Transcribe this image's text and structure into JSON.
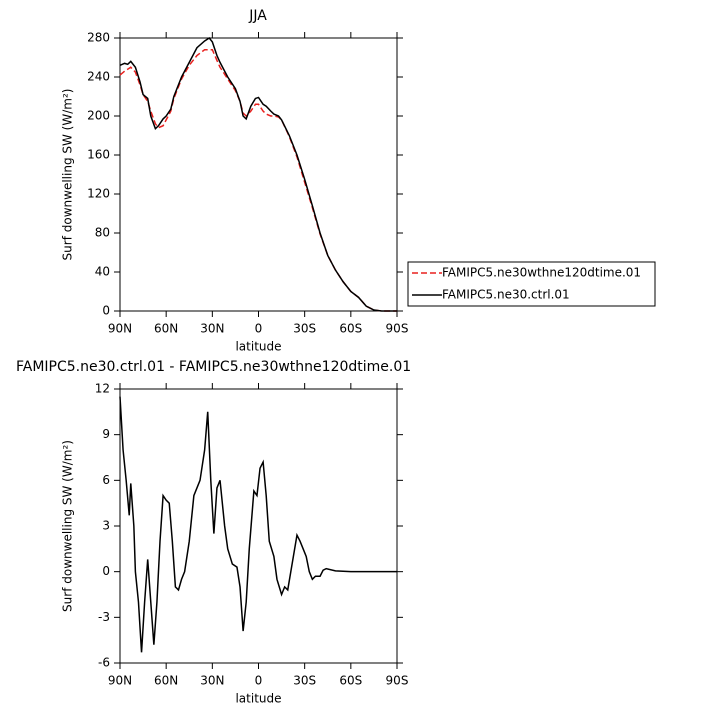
{
  "chart_data": [
    {
      "type": "line",
      "title": "JJA",
      "xlabel": "latitude",
      "ylabel": "Surf downwelling SW (W/m²)",
      "x": [
        90,
        87,
        85,
        83,
        80,
        77,
        75,
        72,
        70,
        67,
        65,
        62,
        60,
        57,
        55,
        50,
        45,
        40,
        35,
        32,
        30,
        27,
        25,
        20,
        15,
        12,
        10,
        8,
        5,
        2,
        0,
        -3,
        -5,
        -8,
        -10,
        -13,
        -15,
        -20,
        -25,
        -30,
        -35,
        -40,
        -45,
        -50,
        -55,
        -60,
        -65,
        -70,
        -75,
        -80,
        -85,
        -90
      ],
      "series": [
        {
          "name": "FAMIPC5.ne30wthne120dtime.01",
          "color": "#e8201e",
          "linestyle": "dashed",
          "values": [
            242,
            246,
            248,
            250,
            245,
            232,
            222,
            215,
            205,
            192,
            188,
            190,
            196,
            205,
            218,
            238,
            252,
            262,
            268,
            268,
            268,
            257,
            250,
            238,
            226,
            215,
            203,
            200,
            205,
            212,
            212,
            205,
            202,
            200,
            200,
            199,
            196,
            179,
            158,
            132,
            106,
            79,
            57,
            42,
            30,
            20,
            14,
            5,
            1,
            0,
            0,
            0
          ]
        },
        {
          "name": "FAMIPC5.ne30.ctrl.01",
          "color": "#000000",
          "linestyle": "solid",
          "values": [
            252,
            254,
            253,
            256,
            250,
            235,
            222,
            218,
            200,
            187,
            190,
            197,
            200,
            207,
            220,
            240,
            255,
            270,
            277,
            280,
            276,
            262,
            255,
            240,
            228,
            215,
            200,
            197,
            210,
            218,
            219,
            212,
            210,
            205,
            202,
            200,
            196,
            180,
            160,
            135,
            108,
            80,
            57,
            42,
            30,
            20,
            14,
            5,
            1,
            0,
            0,
            0
          ]
        }
      ],
      "xlim": [
        90,
        -90
      ],
      "xticks": [
        {
          "value": 90,
          "label": "90N"
        },
        {
          "value": 60,
          "label": "60N"
        },
        {
          "value": 30,
          "label": "30N"
        },
        0,
        {
          "value": -30,
          "label": "30S"
        },
        {
          "value": -60,
          "label": "60S"
        },
        {
          "value": -90,
          "label": "90S"
        }
      ],
      "ylim": [
        0,
        280
      ],
      "yticks": [
        0,
        40,
        80,
        120,
        160,
        200,
        240,
        280
      ],
      "legend": "right"
    },
    {
      "type": "line",
      "title": "FAMIPC5.ne30.ctrl.01 - FAMIPC5.ne30wthne120dtime.01",
      "xlabel": "latitude",
      "ylabel": "Surf downwelling SW (W/m²)",
      "x": [
        90,
        88,
        86,
        84,
        83,
        81,
        80,
        78,
        76,
        74,
        72,
        70,
        68,
        66,
        64,
        62,
        60,
        58,
        56,
        54,
        52,
        50,
        48,
        45,
        42,
        38,
        35,
        33,
        31,
        29,
        27,
        25,
        22,
        20,
        17,
        14,
        12,
        10,
        8,
        6,
        3,
        1,
        -1,
        -3,
        -5,
        -7,
        -10,
        -12,
        -15,
        -17,
        -19,
        -21,
        -25,
        -27,
        -29,
        -31,
        -33,
        -35,
        -37,
        -40,
        -42,
        -44,
        -50,
        -60,
        -90
      ],
      "series": [
        {
          "color": "#000000",
          "linestyle": "solid",
          "values": [
            11.5,
            8,
            6,
            3.7,
            5.8,
            3,
            0,
            -2,
            -5.3,
            -2,
            0.8,
            -2,
            -4.8,
            -2,
            2,
            5,
            4.7,
            4.5,
            2,
            -1,
            -1.2,
            -0.5,
            0,
            2,
            5,
            6,
            8,
            10.5,
            6,
            2.5,
            5.5,
            6,
            3,
            1.5,
            0.5,
            0.3,
            -1,
            -3.9,
            -2,
            1.5,
            5.3,
            5,
            6.8,
            7.2,
            5,
            2,
            1,
            -0.5,
            -1.5,
            -1,
            -1.2,
            0,
            2.4,
            2,
            1.5,
            1,
            0,
            -0.5,
            -0.3,
            -0.3,
            0.1,
            0.2,
            0.05,
            0,
            0
          ]
        }
      ],
      "xlim": [
        90,
        -90
      ],
      "xticks": [
        {
          "value": 90,
          "label": "90N"
        },
        {
          "value": 60,
          "label": "60N"
        },
        {
          "value": 30,
          "label": "30N"
        },
        0,
        {
          "value": -30,
          "label": "30S"
        },
        {
          "value": -60,
          "label": "60S"
        },
        {
          "value": -90,
          "label": "90S"
        }
      ],
      "ylim": [
        -6,
        12
      ],
      "yticks": [
        -6,
        -3,
        0,
        3,
        6,
        9,
        12
      ]
    }
  ]
}
